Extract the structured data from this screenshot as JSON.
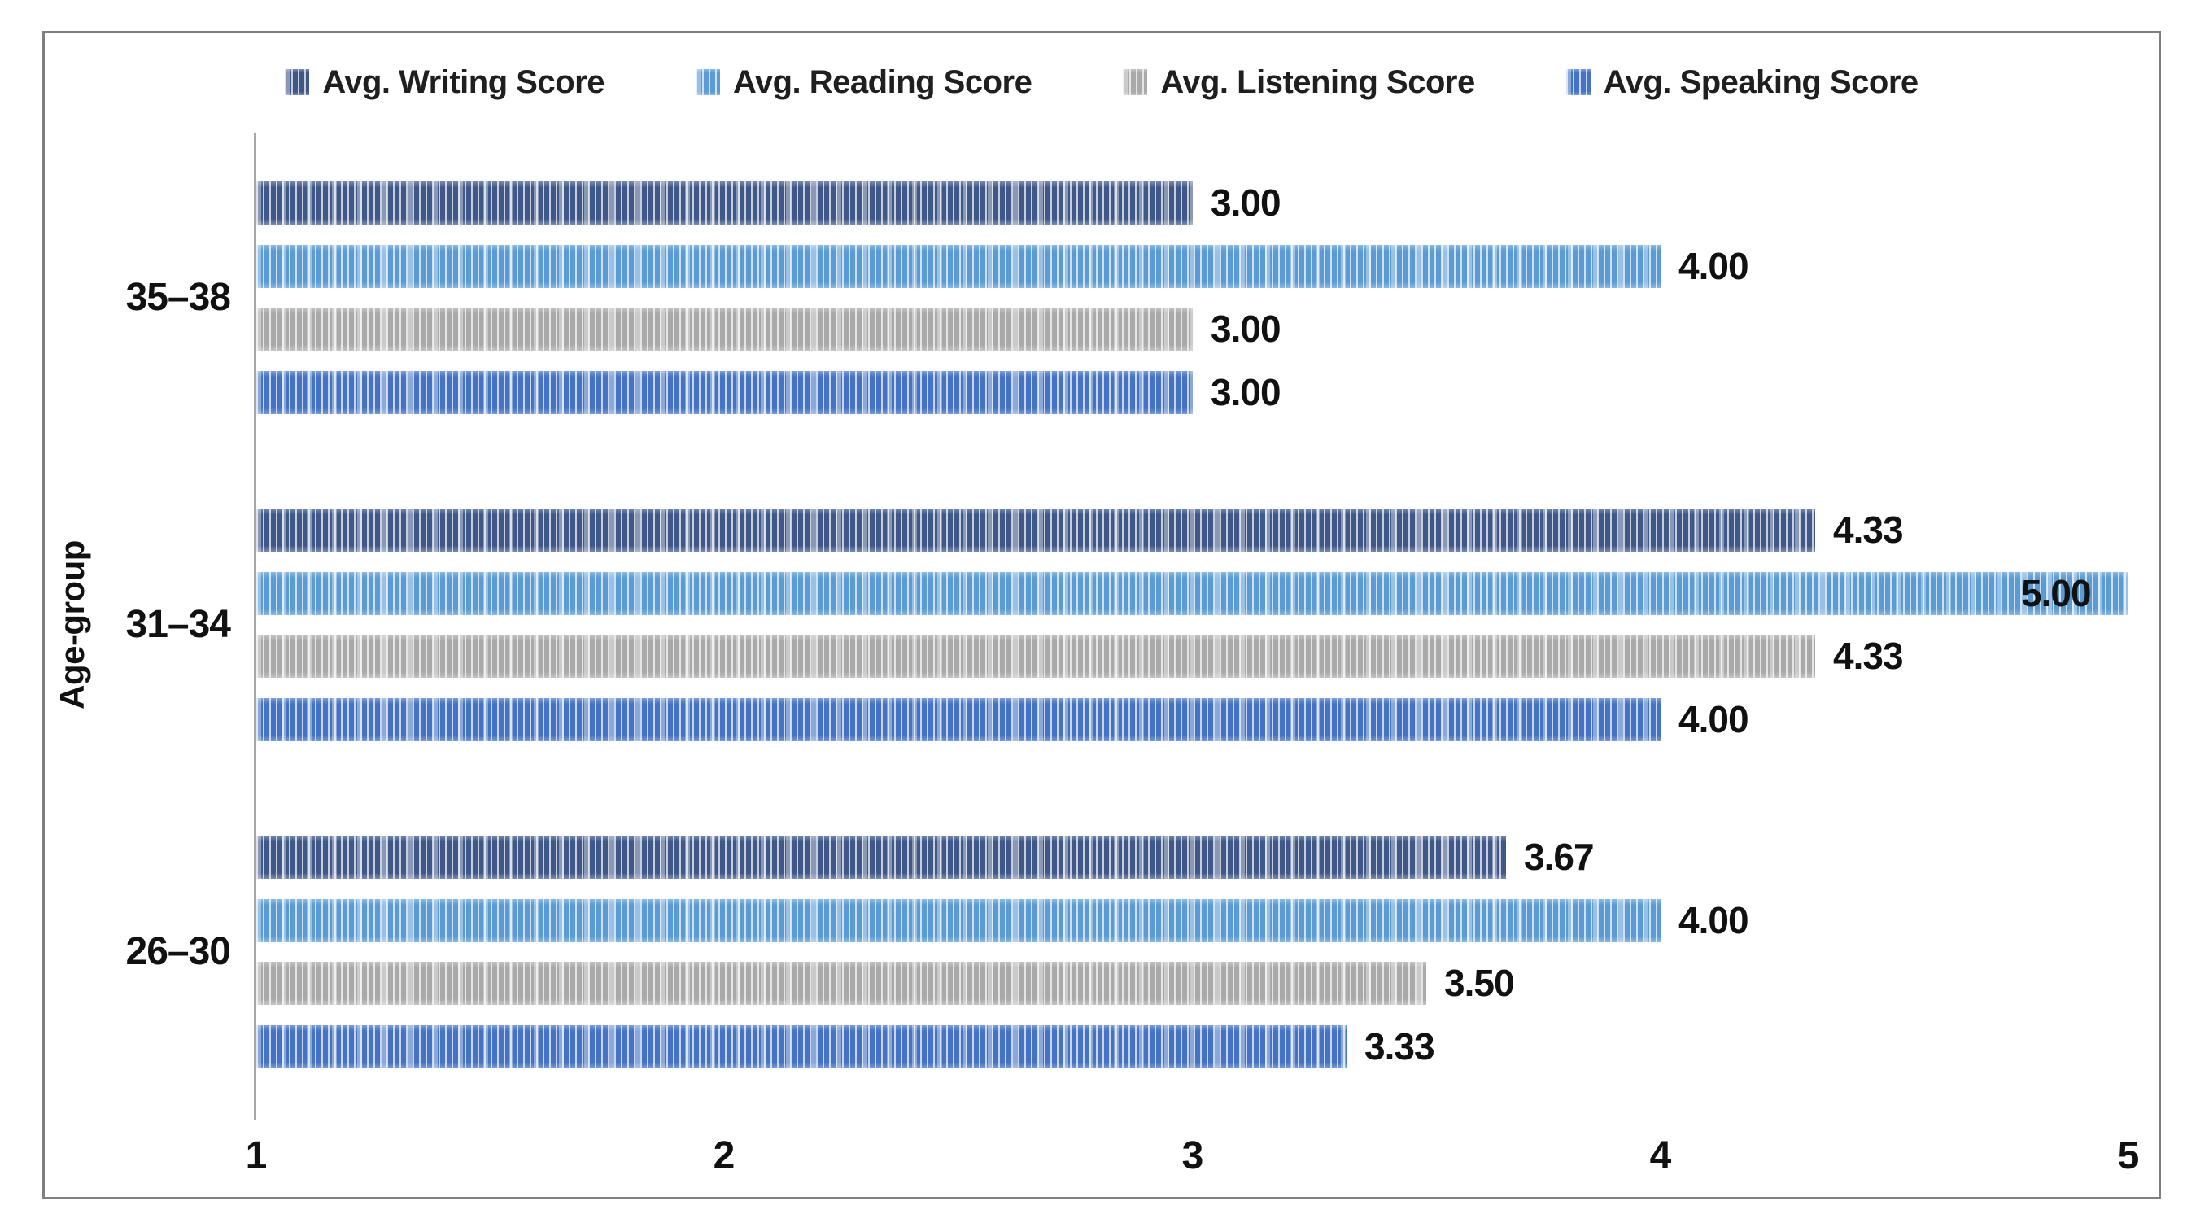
{
  "y_axis_title": "Age-group",
  "x_axis": {
    "ticks": [
      "1",
      "2",
      "3",
      "4",
      "5"
    ],
    "min": 1,
    "max": 5
  },
  "colors": {
    "writing": "#3F5888",
    "reading": "#5B9BD5",
    "listening": "#A9A9A9",
    "speaking": "#4472C4",
    "axis_line": "#A6A6A6",
    "frame_border": "#7F7F7F",
    "label_text": "#111111"
  },
  "chart_data": {
    "type": "bar",
    "orientation": "horizontal",
    "title": "",
    "xlabel": "",
    "ylabel": "Age-group",
    "xlim": [
      1,
      5
    ],
    "grid": false,
    "legend_position": "top",
    "categories": [
      "35–38",
      "31–34",
      "26–30"
    ],
    "series": [
      {
        "name": "Avg. Writing Score",
        "key": "writing",
        "color": "#3F5888",
        "values": [
          3.0,
          4.33,
          3.67
        ],
        "labels": [
          "3.00",
          "4.33",
          "3.67"
        ]
      },
      {
        "name": "Avg. Reading Score",
        "key": "reading",
        "color": "#5B9BD5",
        "values": [
          4.0,
          5.0,
          4.0
        ],
        "labels": [
          "4.00",
          "5.00",
          "4.00"
        ]
      },
      {
        "name": "Avg. Listening Score",
        "key": "listening",
        "color": "#A9A9A9",
        "values": [
          3.0,
          4.33,
          3.5
        ],
        "labels": [
          "3.00",
          "4.33",
          "3.50"
        ]
      },
      {
        "name": "Avg. Speaking Score",
        "key": "speaking",
        "color": "#4472C4",
        "values": [
          3.0,
          4.0,
          3.33
        ],
        "labels": [
          "3.00",
          "4.00",
          "3.33"
        ]
      }
    ]
  }
}
